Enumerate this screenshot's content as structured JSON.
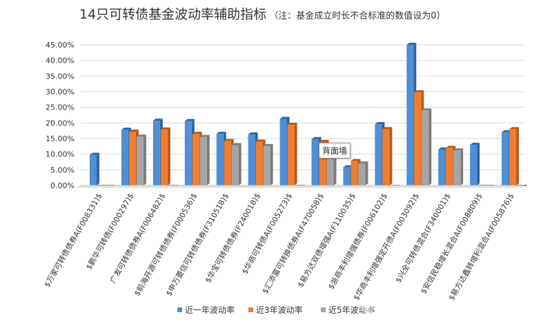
{
  "chart_data": {
    "type": "bar",
    "title": "14只可转债基金波动率辅助指标",
    "subtitle": "（注：基金成立时长不合标准的数值设为0）",
    "categories": [
      "$万家可转债债券A(F008331)$",
      "$鹏华可转债(F000297)$",
      "广发可转债债券A(F006482)$",
      "$前海开源可转债债券(F000536)$",
      "$申万菱信可转债债券(F310518)$",
      "$华宝可转债债券(F240018)$",
      "$华商可转债A(F005273)$",
      "$汇添富可转换债券A(F470058)$",
      "$易方达双债增强A(F110035)$",
      "$浙商丰利增强债券(F006102)$",
      "$华商丰利增强定开债A(F003092)$",
      "$兴全可转债混合(F340001)$",
      "$安信民稳增长混合A(F008809)$",
      "$易方达鑫转增利混合A(F005876)$"
    ],
    "series": [
      {
        "name": "近一年波动率",
        "values": [
          9.8,
          17.8,
          20.7,
          20.6,
          16.5,
          16.3,
          21.3,
          14.8,
          5.8,
          19.6,
          45.0,
          11.5,
          13.0,
          17.0
        ]
      },
      {
        "name": "近3年波动率",
        "values": [
          0,
          17.2,
          17.9,
          16.5,
          14.2,
          14.0,
          19.4,
          13.9,
          7.8,
          18.0,
          29.8,
          12.0,
          0,
          18.0
        ]
      },
      {
        "name": "近5年波动率",
        "values": [
          0,
          15.6,
          0,
          15.5,
          12.9,
          12.6,
          0,
          10.5,
          7.0,
          0,
          24.0,
          11.2,
          0,
          0
        ]
      }
    ],
    "legend_labels": [
      "近一年波动率",
      "近3年波动率",
      "近5年波动率"
    ],
    "y_ticks": [
      "0.00%",
      "5.00%",
      "10.00%",
      "15.00%",
      "20.00%",
      "25.00%",
      "30.00%",
      "35.00%",
      "40.00%",
      "45.00%"
    ],
    "ylim": [
      0,
      45
    ],
    "grid": true,
    "legend_position": "bottom",
    "colors": [
      "#4f8fd6",
      "#ee7d31",
      "#a6a6a6"
    ],
    "colors_dark": [
      "#2d64a3",
      "#b85a17",
      "#7d7d7d"
    ]
  },
  "tooltip": {
    "text": "背面墙"
  },
  "watermark": {
    "text": "雪球：喜欢投资的谭小胖"
  }
}
